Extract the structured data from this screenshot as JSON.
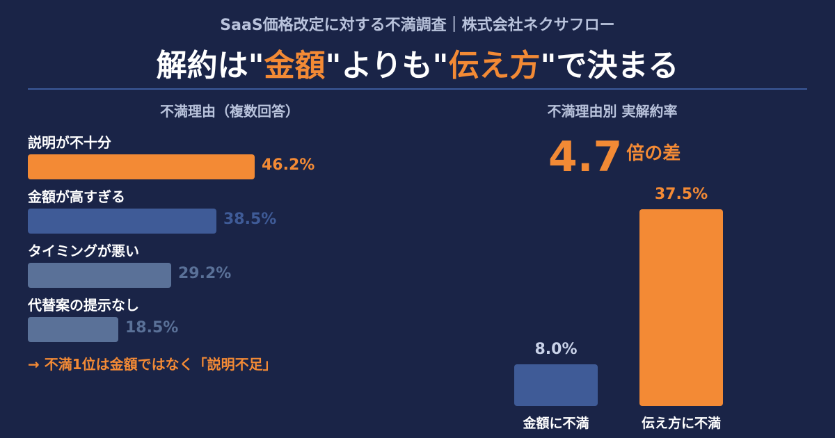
{
  "header": {
    "subtitle": "SaaS価格改定に対する不満調査｜株式会社ネクサフロー",
    "headline_parts": [
      {
        "text": "解約は\"",
        "highlight": false
      },
      {
        "text": "金額",
        "highlight": true
      },
      {
        "text": "\"よりも\"",
        "highlight": false
      },
      {
        "text": "伝え方",
        "highlight": true
      },
      {
        "text": "\"で決まる",
        "highlight": false
      }
    ]
  },
  "colors": {
    "background": "#1a2447",
    "accent": "#f38a35",
    "muted_text": "#b9c3dc",
    "bar_blue": "#3f5b97",
    "bar_slate": "#5a7198"
  },
  "chart_data": [
    {
      "type": "bar",
      "orientation": "horizontal",
      "title": "不満理由（複数回答）",
      "categories": [
        "説明が不十分",
        "金額が高すぎる",
        "タイミングが悪い",
        "代替案の提示なし"
      ],
      "values": [
        46.2,
        38.5,
        29.2,
        18.5
      ],
      "value_labels": [
        "46.2%",
        "38.5%",
        "29.2%",
        "18.5%"
      ],
      "bar_colors": [
        "#f38a35",
        "#3f5b97",
        "#5a7198",
        "#5a7198"
      ],
      "label_colors": [
        "#f38a35",
        "#3f5b97",
        "#5a7198",
        "#5a7198"
      ],
      "xlim": [
        0,
        65
      ],
      "annotation": "→ 不満1位は金額ではなく「説明不足」"
    },
    {
      "type": "bar",
      "orientation": "vertical",
      "title": "不満理由別 実解約率",
      "categories": [
        "金額に不満",
        "伝え方に不満"
      ],
      "values": [
        8.0,
        37.5
      ],
      "value_labels": [
        "8.0%",
        "37.5%"
      ],
      "bar_colors": [
        "#3f5b97",
        "#f38a35"
      ],
      "label_colors": [
        "#c9d2e8",
        "#f38a35"
      ],
      "ylim": [
        0,
        40
      ],
      "ratio_value": "4.7",
      "ratio_unit": "倍の差"
    }
  ]
}
